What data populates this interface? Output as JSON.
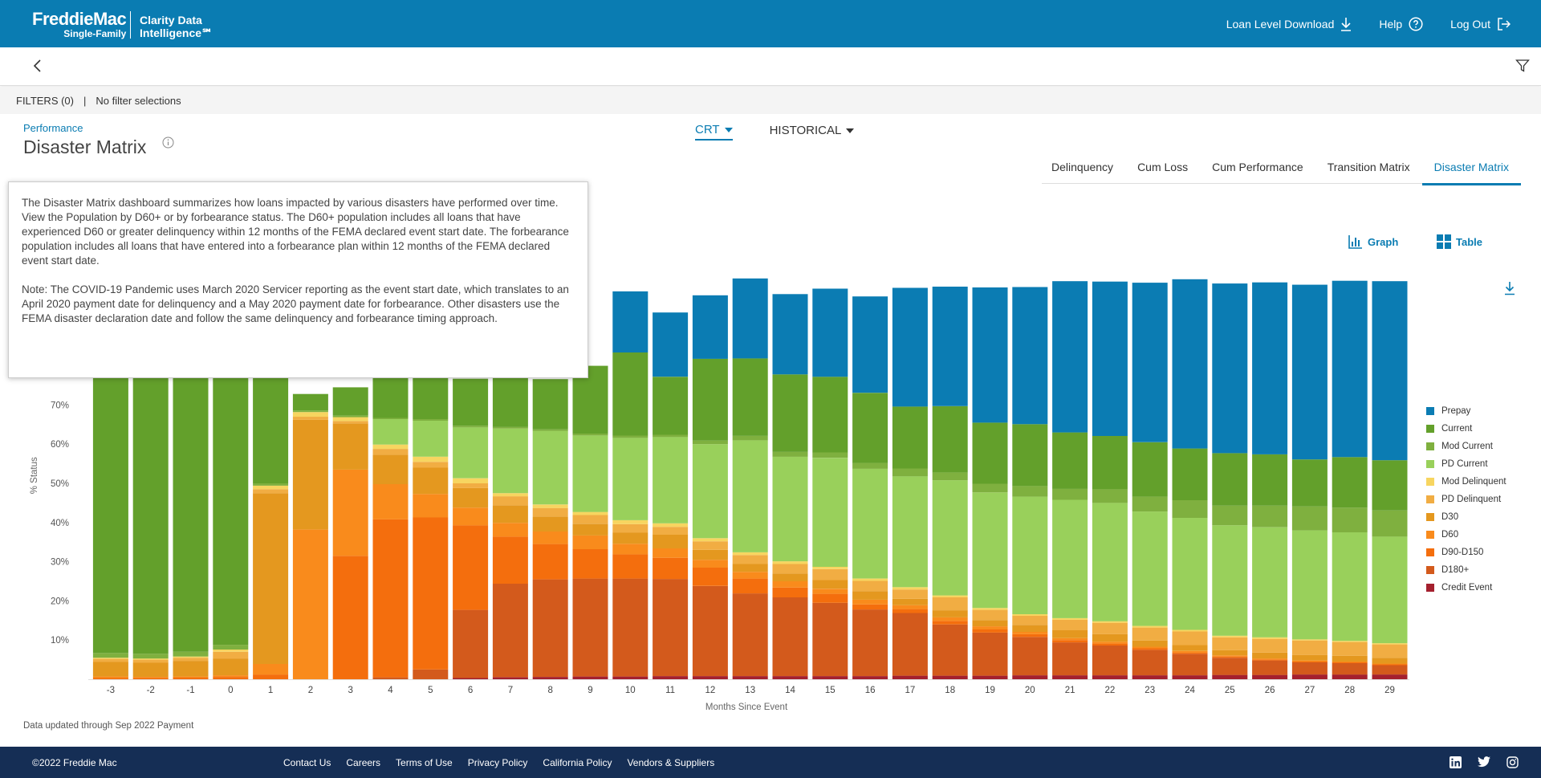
{
  "header": {
    "logo_main": "FreddieMac",
    "logo_sub": "Single-Family",
    "product_line1": "Clarity Data",
    "product_line2": "Intelligence℠",
    "nav": {
      "download": "Loan Level Download",
      "help": "Help",
      "logout": "Log Out"
    }
  },
  "filters": {
    "label": "FILTERS (0)",
    "separator": "|",
    "value": "No filter selections"
  },
  "page": {
    "breadcrumb": "Performance",
    "title": "Disaster Matrix"
  },
  "dropdowns": {
    "crt": "CRT",
    "historical": "HISTORICAL"
  },
  "tabs": [
    "Delinquency",
    "Cum Loss",
    "Cum Performance",
    "Transition Matrix",
    "Disaster Matrix"
  ],
  "view_toggle": {
    "graph": "Graph",
    "table": "Table"
  },
  "tooltip": {
    "paragraph1": "The Disaster Matrix dashboard summarizes how loans impacted by various disasters have performed over time. View the Population by D60+ or by forbearance status. The D60+ population includes all loans that have experienced D60 or greater delinquency within 12 months of the FEMA declared event start date. The forbearance population includes all loans that have entered into a forbearance plan within 12 months of the FEMA declared event start date.",
    "paragraph2": "Note: The COVID-19 Pandemic uses March 2020 Servicer reporting as the event start date, which translates to an April 2020 payment date for delinquency and a May 2020 payment date for forbearance. Other disasters use the FEMA disaster declaration date and follow the same delinquency and forbearance timing approach."
  },
  "chart_data": {
    "type": "stacked-bar",
    "xlabel": "Months Since Event",
    "ylabel": "% Status",
    "ylim": [
      0,
      100
    ],
    "yticks": [
      10,
      20,
      30,
      40,
      50,
      60,
      70
    ],
    "categories": [
      "-3",
      "-2",
      "-1",
      "0",
      "1",
      "2",
      "3",
      "4",
      "5",
      "6",
      "7",
      "8",
      "9",
      "10",
      "11",
      "12",
      "13",
      "14",
      "15",
      "16",
      "17",
      "18",
      "19",
      "20",
      "21",
      "22",
      "23",
      "24",
      "25",
      "26",
      "27",
      "28",
      "29"
    ],
    "series": [
      {
        "name": "Credit Event",
        "color": "#a4202e",
        "values": [
          0,
          0,
          0,
          0,
          0,
          0,
          0,
          0,
          0,
          0.3,
          0.5,
          0.6,
          0.7,
          0.7,
          0.8,
          0.8,
          0.8,
          0.8,
          0.8,
          0.8,
          0.9,
          0.9,
          0.9,
          1,
          1,
          1,
          1,
          1,
          1.1,
          1.1,
          1.2,
          1.2,
          1.2
        ]
      },
      {
        "name": "D180+",
        "color": "#d35a1c",
        "values": [
          0,
          0,
          0,
          0,
          0,
          0,
          0,
          0.5,
          2.5,
          17.4,
          23.9,
          24.9,
          25,
          25,
          24.8,
          23,
          21.1,
          20.1,
          18.7,
          17,
          16,
          13.1,
          11,
          9.8,
          8.4,
          7.6,
          6.5,
          5.5,
          4.4,
          3.7,
          3.1,
          2.9,
          2.4
        ]
      },
      {
        "name": "D90-D150",
        "color": "#f46e0d",
        "values": [
          0.3,
          0.3,
          0.4,
          0.6,
          1.2,
          0,
          31.5,
          40.3,
          38.8,
          21.6,
          12,
          9,
          7.5,
          6.2,
          5.4,
          4.7,
          3.8,
          2.5,
          2.3,
          1.3,
          1,
          0.9,
          0.8,
          0.7,
          0.6,
          0.5,
          0.4,
          0.3,
          0.3,
          0.2,
          0.2,
          0.2,
          0.2
        ]
      },
      {
        "name": "D60",
        "color": "#f98b1c",
        "values": [
          0.4,
          0.3,
          0.3,
          0.4,
          2.7,
          38.2,
          22,
          9,
          6,
          4.5,
          3.5,
          3.2,
          3.5,
          2.7,
          2.4,
          2,
          1.7,
          1.6,
          1.3,
          1.2,
          1,
          0.9,
          0.8,
          0.6,
          0.5,
          0.5,
          0.4,
          0.4,
          0.3,
          0.3,
          0.3,
          0.2,
          0.2
        ]
      },
      {
        "name": "D30",
        "color": "#e4981f",
        "values": [
          3.7,
          3.6,
          4,
          4.3,
          43.6,
          28,
          11.8,
          7.5,
          6.7,
          5,
          4.5,
          3.8,
          3,
          2.8,
          3.5,
          2.5,
          2,
          2,
          2.2,
          2.2,
          1.6,
          1.8,
          1.6,
          1.8,
          2,
          1.9,
          1.6,
          1.5,
          1.3,
          1.5,
          1.4,
          1.5,
          1.5
        ]
      },
      {
        "name": "PD Delinquent",
        "color": "#f1ad43",
        "values": [
          0.8,
          0.8,
          0.8,
          1.7,
          1,
          0.8,
          0.6,
          1.5,
          1.5,
          1.2,
          2.3,
          2.2,
          2.2,
          2.2,
          2,
          2.2,
          2.3,
          2.4,
          2.8,
          2.6,
          2.4,
          3.3,
          2.6,
          2.3,
          2.7,
          2.9,
          3.3,
          3.5,
          3.3,
          3.5,
          3.7,
          3.5,
          3.4
        ]
      },
      {
        "name": "Mod Delinquent",
        "color": "#f7d560",
        "values": [
          0.3,
          0.3,
          0.3,
          0.6,
          0.9,
          1.2,
          1,
          1.1,
          1.3,
          1.3,
          0.8,
          0.9,
          0.8,
          1,
          0.9,
          0.8,
          0.7,
          0.7,
          0.6,
          0.6,
          0.6,
          0.5,
          0.5,
          0.4,
          0.4,
          0.4,
          0.4,
          0.4,
          0.4,
          0.4,
          0.3,
          0.3,
          0.3
        ]
      },
      {
        "name": "PD Current",
        "color": "#99d05b",
        "values": [
          0,
          0,
          0,
          0,
          0,
          0,
          0,
          6.5,
          9.2,
          13,
          16.5,
          18.8,
          19.5,
          21,
          22,
          24,
          28.6,
          26.7,
          27.8,
          28,
          28.3,
          29.4,
          29.5,
          30,
          30.2,
          30.2,
          29.2,
          28.6,
          28.2,
          28.1,
          27.8,
          27.7,
          27.2
        ]
      },
      {
        "name": "Mod Current",
        "color": "#7fb03f",
        "values": [
          1.2,
          1.2,
          1.2,
          1.2,
          0.6,
          0.4,
          0.4,
          0.3,
          0.4,
          0.4,
          0.4,
          0.4,
          0.5,
          0.6,
          0.6,
          0.9,
          1.1,
          1.2,
          1.4,
          1.5,
          2,
          2,
          2.2,
          2.7,
          2.8,
          3.5,
          3.8,
          4.5,
          5,
          5.5,
          6.1,
          6.3,
          6.7
        ]
      },
      {
        "name": "Current",
        "color": "#63a02b",
        "values": [
          93.3,
          93.5,
          93,
          91.2,
          45,
          4.2,
          7.2,
          11,
          12.5,
          12,
          12.7,
          12.8,
          17.3,
          21.2,
          14.8,
          20.9,
          19.8,
          19.8,
          19.3,
          17.9,
          15.8,
          16.9,
          15.6,
          15.8,
          14.4,
          13.6,
          13.9,
          13.2,
          13.4,
          13.1,
          12,
          12.9,
          12.8
        ]
      },
      {
        "name": "Prepay",
        "color": "#0b7cb3",
        "values": [
          0,
          0,
          0,
          0,
          0,
          0,
          0,
          0,
          0,
          0,
          0,
          0,
          0,
          15.6,
          16.4,
          16.2,
          20.4,
          20.5,
          22.5,
          24.6,
          30.3,
          30.5,
          34.5,
          35,
          38.6,
          39.4,
          40.7,
          43.2,
          43.3,
          43.9,
          44.6,
          45,
          45.7
        ]
      }
    ]
  },
  "data_note": "Data updated through Sep 2022 Payment",
  "footer": {
    "copyright": "©2022 Freddie Mac",
    "links": [
      "Contact Us",
      "Careers",
      "Terms of Use",
      "Privacy Policy",
      "California Policy",
      "Vendors & Suppliers"
    ]
  },
  "colors": {
    "brand": "#0a7cb2",
    "footer": "#152e55"
  }
}
